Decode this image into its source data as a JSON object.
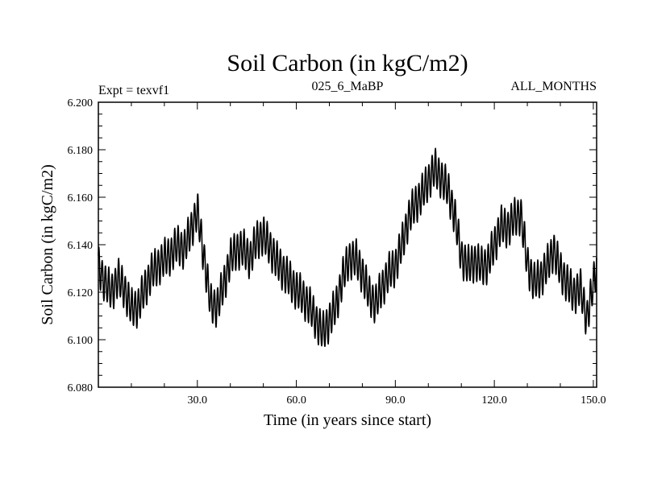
{
  "chart_data": {
    "type": "line",
    "title": "Soil Carbon (in kgC/m2)",
    "subtitle_left": "Expt = texvf1",
    "subtitle_center": "025_6_MaBP",
    "subtitle_right": "ALL_MONTHS",
    "xlabel": "Time (in years since start)",
    "ylabel": "Soil Carbon (in kgC/m2)",
    "xlim": [
      0,
      151
    ],
    "ylim": [
      6.08,
      6.2
    ],
    "xticks": [
      30,
      60,
      90,
      120,
      150
    ],
    "xtick_labels": [
      "30.0",
      "60.0",
      "90.0",
      "120.0",
      "150.0"
    ],
    "yticks": [
      6.08,
      6.1,
      6.12,
      6.14,
      6.16,
      6.18,
      6.2
    ],
    "ytick_labels": [
      "6.080",
      "6.100",
      "6.120",
      "6.140",
      "6.160",
      "6.180",
      "6.200"
    ],
    "grid": false,
    "series": [
      {
        "name": "Soil Carbon",
        "color": "#000000",
        "seasonal_amplitude": 0.009,
        "x": [
          0,
          2,
          4,
          6,
          8,
          10,
          12,
          14,
          16,
          18,
          20,
          22,
          24,
          26,
          28,
          30,
          32,
          34,
          36,
          38,
          40,
          42,
          44,
          46,
          48,
          50,
          52,
          54,
          56,
          58,
          60,
          62,
          64,
          66,
          68,
          70,
          72,
          74,
          76,
          78,
          80,
          82,
          84,
          86,
          88,
          90,
          92,
          94,
          96,
          98,
          100,
          102,
          104,
          106,
          108,
          110,
          112,
          114,
          116,
          118,
          120,
          122,
          124,
          126,
          128,
          130,
          132,
          134,
          136,
          138,
          140,
          142,
          144,
          146,
          148,
          150,
          151
        ],
        "values": [
          6.131,
          6.124,
          6.12,
          6.126,
          6.121,
          6.113,
          6.114,
          6.121,
          6.128,
          6.131,
          6.134,
          6.136,
          6.14,
          6.138,
          6.146,
          6.154,
          6.135,
          6.115,
          6.114,
          6.123,
          6.134,
          6.138,
          6.138,
          6.134,
          6.142,
          6.144,
          6.139,
          6.133,
          6.129,
          6.125,
          6.121,
          6.118,
          6.114,
          6.108,
          6.103,
          6.108,
          6.114,
          6.126,
          6.134,
          6.134,
          6.128,
          6.119,
          6.115,
          6.122,
          6.128,
          6.131,
          6.14,
          6.151,
          6.157,
          6.161,
          6.167,
          6.172,
          6.168,
          6.163,
          6.152,
          6.135,
          6.131,
          6.133,
          6.131,
          6.132,
          6.14,
          6.148,
          6.147,
          6.151,
          6.153,
          6.132,
          6.124,
          6.126,
          6.131,
          6.138,
          6.129,
          6.124,
          6.119,
          6.122,
          6.109,
          6.123,
          6.131
        ]
      }
    ]
  }
}
